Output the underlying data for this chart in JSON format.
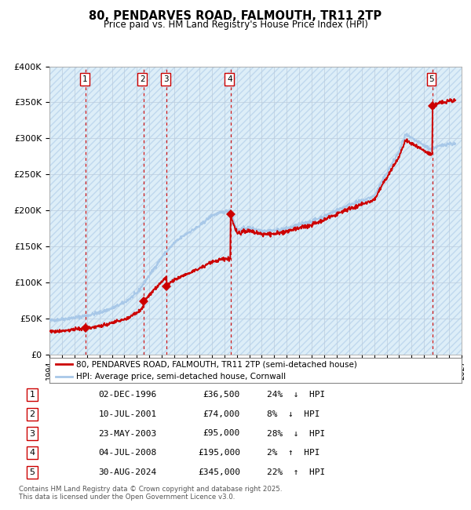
{
  "title": "80, PENDARVES ROAD, FALMOUTH, TR11 2TP",
  "subtitle": "Price paid vs. HM Land Registry's House Price Index (HPI)",
  "legend_line1": "80, PENDARVES ROAD, FALMOUTH, TR11 2TP (semi-detached house)",
  "legend_line2": "HPI: Average price, semi-detached house, Cornwall",
  "footer": "Contains HM Land Registry data © Crown copyright and database right 2025.\nThis data is licensed under the Open Government Licence v3.0.",
  "purchases": [
    {
      "label": "1",
      "date": "02-DEC-1996",
      "price": 36500,
      "pct": "24%",
      "dir": "↓",
      "year": 1996.92
    },
    {
      "label": "2",
      "date": "10-JUL-2001",
      "price": 74000,
      "pct": "8%",
      "dir": "↓",
      "year": 2001.52
    },
    {
      "label": "3",
      "date": "23-MAY-2003",
      "price": 95000,
      "pct": "28%",
      "dir": "↓",
      "year": 2003.39
    },
    {
      "label": "4",
      "date": "04-JUL-2008",
      "price": 195000,
      "pct": "2%",
      "dir": "↑",
      "year": 2008.5
    },
    {
      "label": "5",
      "date": "30-AUG-2024",
      "price": 345000,
      "pct": "22%",
      "dir": "↑",
      "year": 2024.66
    }
  ],
  "xmin": 1994,
  "xmax": 2027,
  "ymin": 0,
  "ymax": 400000,
  "yticks": [
    0,
    50000,
    100000,
    150000,
    200000,
    250000,
    300000,
    350000,
    400000
  ],
  "ytick_labels": [
    "£0",
    "£50K",
    "£100K",
    "£150K",
    "£200K",
    "£250K",
    "£300K",
    "£350K",
    "£400K"
  ],
  "hpi_color": "#a8c8e8",
  "price_color": "#cc0000",
  "vline_color": "#cc0000",
  "bg_color": "#ddeef8",
  "hatch_color": "#c0d8ee",
  "grid_color": "#bbccdd",
  "marker_color": "#cc0000"
}
